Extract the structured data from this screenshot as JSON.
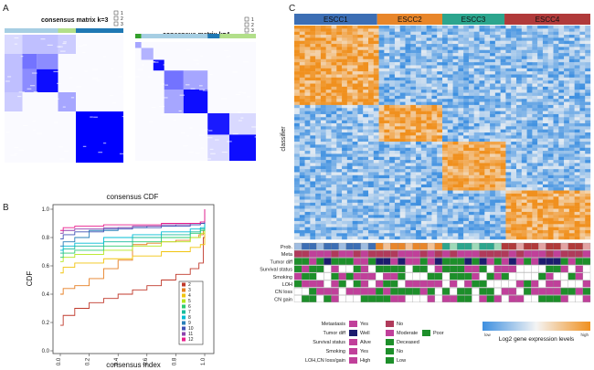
{
  "panels": {
    "a": "A",
    "b": "B",
    "c": "C"
  },
  "chart_data": [
    {
      "type": "heatmap",
      "name": "consensus-matrix-k3",
      "title": "consensus matrix k=3",
      "legend": [
        "1",
        "2",
        "3"
      ],
      "cluster_colors": [
        "#a6cee3",
        "#b2df8a",
        "#1f78b4"
      ],
      "cluster_fractions": [
        0.45,
        0.15,
        0.4
      ],
      "blocks": [
        {
          "from": 0.0,
          "to": 0.15,
          "value": 0.15
        },
        {
          "from": 0.15,
          "to": 0.27,
          "value": 0.55
        },
        {
          "from": 0.27,
          "to": 0.45,
          "value": 0.95
        },
        {
          "from": 0.45,
          "to": 0.6,
          "value": 0.35
        },
        {
          "from": 0.6,
          "to": 1.0,
          "value": 1.0
        }
      ],
      "offdiag": [
        {
          "r": [
            0.15,
            0.27
          ],
          "c": [
            0.27,
            0.45
          ],
          "value": 0.45
        },
        {
          "r": [
            0.27,
            0.45
          ],
          "c": [
            0.15,
            0.27
          ],
          "value": 0.45
        },
        {
          "r": [
            0.0,
            0.15
          ],
          "c": [
            0.15,
            0.45
          ],
          "value": 0.25
        },
        {
          "r": [
            0.15,
            0.45
          ],
          "c": [
            0.0,
            0.15
          ],
          "value": 0.25
        },
        {
          "r": [
            0.45,
            0.6
          ],
          "c": [
            0.0,
            0.15
          ],
          "value": 0.2
        },
        {
          "r": [
            0.0,
            0.15
          ],
          "c": [
            0.45,
            0.6
          ],
          "value": 0.2
        }
      ]
    },
    {
      "type": "heatmap",
      "name": "consensus-matrix-k4",
      "title": "consensus matrix k=4",
      "legend": [
        "1",
        "2",
        "3",
        "4"
      ],
      "cluster_colors": [
        "#33a02c",
        "#a6cee3",
        "#1f78b4",
        "#b2df8a"
      ],
      "cluster_fractions": [
        0.05,
        0.55,
        0.1,
        0.3
      ],
      "blocks": [
        {
          "from": 0.0,
          "to": 0.05,
          "value": 0.35
        },
        {
          "from": 0.05,
          "to": 0.15,
          "value": 0.3
        },
        {
          "from": 0.15,
          "to": 0.24,
          "value": 0.95
        },
        {
          "from": 0.24,
          "to": 0.4,
          "value": 0.55
        },
        {
          "from": 0.4,
          "to": 0.6,
          "value": 0.95
        },
        {
          "from": 0.6,
          "to": 0.78,
          "value": 0.9
        },
        {
          "from": 0.78,
          "to": 1.0,
          "value": 0.95
        }
      ],
      "offdiag": [
        {
          "r": [
            0.24,
            0.4
          ],
          "c": [
            0.4,
            0.6
          ],
          "value": 0.35
        },
        {
          "r": [
            0.4,
            0.6
          ],
          "c": [
            0.24,
            0.4
          ],
          "value": 0.35
        },
        {
          "r": [
            0.6,
            0.78
          ],
          "c": [
            0.78,
            1.0
          ],
          "value": 0.15
        },
        {
          "r": [
            0.78,
            1.0
          ],
          "c": [
            0.6,
            0.78
          ],
          "value": 0.15
        }
      ]
    },
    {
      "type": "line",
      "name": "consensus-cdf",
      "title": "consensus CDF",
      "xlabel": "consensus index",
      "ylabel": "CDF",
      "xlim": [
        0,
        1
      ],
      "ylim": [
        0,
        1
      ],
      "xticks": [
        0.0,
        0.2,
        0.4,
        0.6,
        0.8,
        1.0
      ],
      "yticks": [
        0.0,
        0.2,
        0.4,
        0.6,
        0.8,
        1.0
      ],
      "series": [
        {
          "name": "2",
          "color": "#c0392b",
          "x": [
            0,
            0.02,
            0.1,
            0.2,
            0.3,
            0.4,
            0.5,
            0.6,
            0.7,
            0.8,
            0.9,
            0.96,
            0.99,
            1.0
          ],
          "y": [
            0.18,
            0.25,
            0.3,
            0.34,
            0.37,
            0.4,
            0.43,
            0.46,
            0.5,
            0.54,
            0.58,
            0.62,
            0.8,
            1.0
          ]
        },
        {
          "name": "3",
          "color": "#e67e22",
          "x": [
            0,
            0.02,
            0.1,
            0.2,
            0.3,
            0.4,
            0.5,
            0.6,
            0.7,
            0.8,
            0.9,
            0.96,
            0.99,
            1.0
          ],
          "y": [
            0.4,
            0.44,
            0.46,
            0.51,
            0.58,
            0.64,
            0.75,
            0.76,
            0.77,
            0.78,
            0.8,
            0.82,
            0.85,
            1.0
          ]
        },
        {
          "name": "4",
          "color": "#f1c40f",
          "x": [
            0,
            0.02,
            0.1,
            0.3,
            0.5,
            0.7,
            0.9,
            0.97,
            1.0
          ],
          "y": [
            0.55,
            0.59,
            0.62,
            0.65,
            0.67,
            0.7,
            0.73,
            0.75,
            1.0
          ]
        },
        {
          "name": "5",
          "color": "#b5e61d",
          "x": [
            0,
            0.02,
            0.1,
            0.3,
            0.5,
            0.7,
            0.9,
            0.97,
            1.0
          ],
          "y": [
            0.63,
            0.66,
            0.68,
            0.71,
            0.74,
            0.77,
            0.8,
            0.83,
            1.0
          ]
        },
        {
          "name": "6",
          "color": "#2ecc71",
          "x": [
            0,
            0.02,
            0.1,
            0.3,
            0.5,
            0.7,
            0.9,
            0.97,
            1.0
          ],
          "y": [
            0.66,
            0.69,
            0.71,
            0.74,
            0.77,
            0.8,
            0.83,
            0.85,
            1.0
          ]
        },
        {
          "name": "7",
          "color": "#1abc9c",
          "x": [
            0,
            0.02,
            0.1,
            0.3,
            0.5,
            0.7,
            0.9,
            0.97,
            1.0
          ],
          "y": [
            0.69,
            0.72,
            0.74,
            0.77,
            0.8,
            0.82,
            0.84,
            0.86,
            1.0
          ]
        },
        {
          "name": "8",
          "color": "#00bcd4",
          "x": [
            0,
            0.02,
            0.1,
            0.3,
            0.5,
            0.7,
            0.9,
            0.97,
            1.0
          ],
          "y": [
            0.71,
            0.74,
            0.76,
            0.8,
            0.82,
            0.84,
            0.86,
            0.87,
            1.0
          ]
        },
        {
          "name": "9",
          "color": "#2980b9",
          "x": [
            0,
            0.02,
            0.1,
            0.2,
            0.4,
            0.6,
            0.8,
            0.97,
            1.0
          ],
          "y": [
            0.74,
            0.77,
            0.8,
            0.85,
            0.87,
            0.88,
            0.89,
            0.9,
            1.0
          ]
        },
        {
          "name": "10",
          "color": "#3f51b5",
          "x": [
            0,
            0.02,
            0.1,
            0.3,
            0.5,
            0.7,
            0.9,
            0.97,
            1.0
          ],
          "y": [
            0.79,
            0.82,
            0.84,
            0.86,
            0.87,
            0.88,
            0.89,
            0.9,
            1.0
          ]
        },
        {
          "name": "11",
          "color": "#8e44ad",
          "x": [
            0,
            0.02,
            0.1,
            0.3,
            0.5,
            0.7,
            0.9,
            0.97,
            1.0
          ],
          "y": [
            0.83,
            0.85,
            0.86,
            0.87,
            0.88,
            0.89,
            0.9,
            0.91,
            1.0
          ]
        },
        {
          "name": "12",
          "color": "#e91e8c",
          "x": [
            0,
            0.02,
            0.1,
            0.3,
            0.5,
            0.7,
            0.9,
            0.97,
            1.0
          ],
          "y": [
            0.85,
            0.87,
            0.88,
            0.89,
            0.89,
            0.9,
            0.9,
            0.91,
            1.0
          ]
        }
      ]
    },
    {
      "type": "heatmap",
      "name": "expression-heatmap",
      "row_label": "classifier",
      "groups": [
        {
          "name": "ESCC1",
          "color": "#3c6eb4",
          "fraction": 0.28
        },
        {
          "name": "ESCC2",
          "color": "#e8862a",
          "fraction": 0.22
        },
        {
          "name": "ESCC3",
          "color": "#2ca58d",
          "fraction": 0.21
        },
        {
          "name": "ESCC4",
          "color": "#b03a3a",
          "fraction": 0.29
        }
      ],
      "gene_blocks": [
        0.37,
        0.18,
        0.22,
        0.23
      ],
      "colorbar": {
        "low": "low",
        "high": "high",
        "label": "Log2 gene expression levels",
        "low_color": "#3d8fe0",
        "mid_color": "#f4f4f4",
        "high_color": "#f0901e"
      },
      "annotation_tracks": [
        "Prob.",
        "Meta",
        "Tumor diff",
        "Survival status",
        "Smoking",
        "LOH",
        "CN loss",
        "CN gain"
      ]
    }
  ],
  "annotation_legend": [
    {
      "label": "Metastasis",
      "items": [
        {
          "text": "Yes",
          "color": "#c0409a"
        },
        {
          "text": "No",
          "color": "#b03a5b"
        }
      ]
    },
    {
      "label": "Tumor diff",
      "items": [
        {
          "text": "Well",
          "color": "#1c1c6e"
        },
        {
          "text": "Moderate",
          "color": "#c0409a"
        },
        {
          "text": "Poor",
          "color": "#1d8f2a"
        }
      ]
    },
    {
      "label": "Survival status",
      "items": [
        {
          "text": "Alive",
          "color": "#c0409a"
        },
        {
          "text": "Deceased",
          "color": "#1d8f2a"
        }
      ]
    },
    {
      "label": "Smoking",
      "items": [
        {
          "text": "Yes",
          "color": "#c0409a"
        },
        {
          "text": "No",
          "color": "#1d8f2a"
        }
      ]
    },
    {
      "label": "LOH,CN loss/gain",
      "items": [
        {
          "text": "High",
          "color": "#c0409a"
        },
        {
          "text": "Low",
          "color": "#1d8f2a"
        }
      ]
    }
  ]
}
